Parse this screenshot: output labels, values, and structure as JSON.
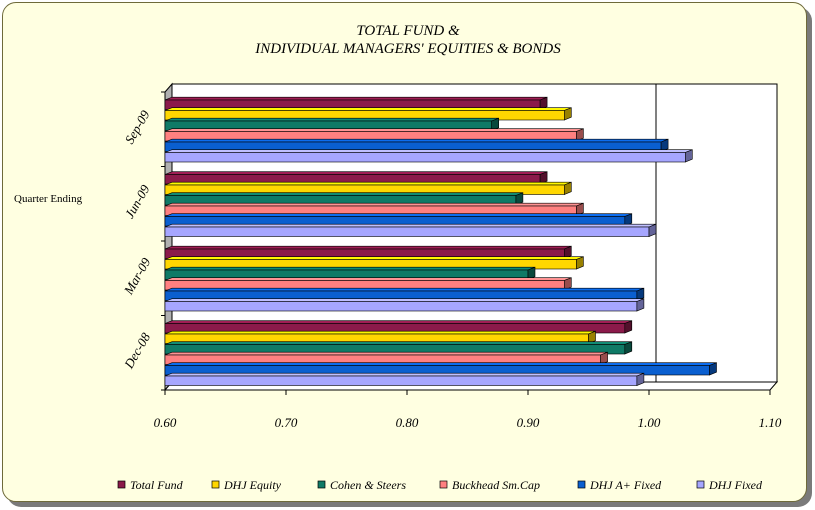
{
  "chart_data": {
    "type": "bar",
    "orientation": "horizontal",
    "title_lines": [
      "TOTAL FUND &",
      "INDIVIDUAL MANAGERS' EQUITIES & BONDS"
    ],
    "ylabel": "Quarter Ending",
    "xlabel": "",
    "xlim": [
      0.6,
      1.1
    ],
    "ticks": [
      "0.60",
      "0.70",
      "0.80",
      "0.90",
      "1.00",
      "1.10"
    ],
    "categories": [
      "Sep-09",
      "Jun-09",
      "Mar-09",
      "Dec-08"
    ],
    "series": [
      {
        "name": "Total Fund",
        "color": "#8b1a4a",
        "values": [
          0.91,
          0.91,
          0.93,
          0.98
        ]
      },
      {
        "name": "DHJ Equity",
        "color": "#ffd700",
        "values": [
          0.93,
          0.93,
          0.94,
          0.95
        ]
      },
      {
        "name": "Cohen & Steers",
        "color": "#0f7a66",
        "values": [
          0.87,
          0.89,
          0.9,
          0.98
        ]
      },
      {
        "name": "Buckhead Sm.Cap",
        "color": "#ff8080",
        "values": [
          0.94,
          0.94,
          0.93,
          0.96
        ]
      },
      {
        "name": "DHJ A+ Fixed",
        "color": "#0a5fd0",
        "values": [
          1.01,
          0.98,
          0.99,
          1.05
        ]
      },
      {
        "name": "DHJ Fixed",
        "color": "#a6a6ff",
        "values": [
          1.03,
          1.0,
          0.99,
          0.99
        ]
      }
    ],
    "grid": "vertical line at 1.00",
    "legend_position": "bottom"
  }
}
